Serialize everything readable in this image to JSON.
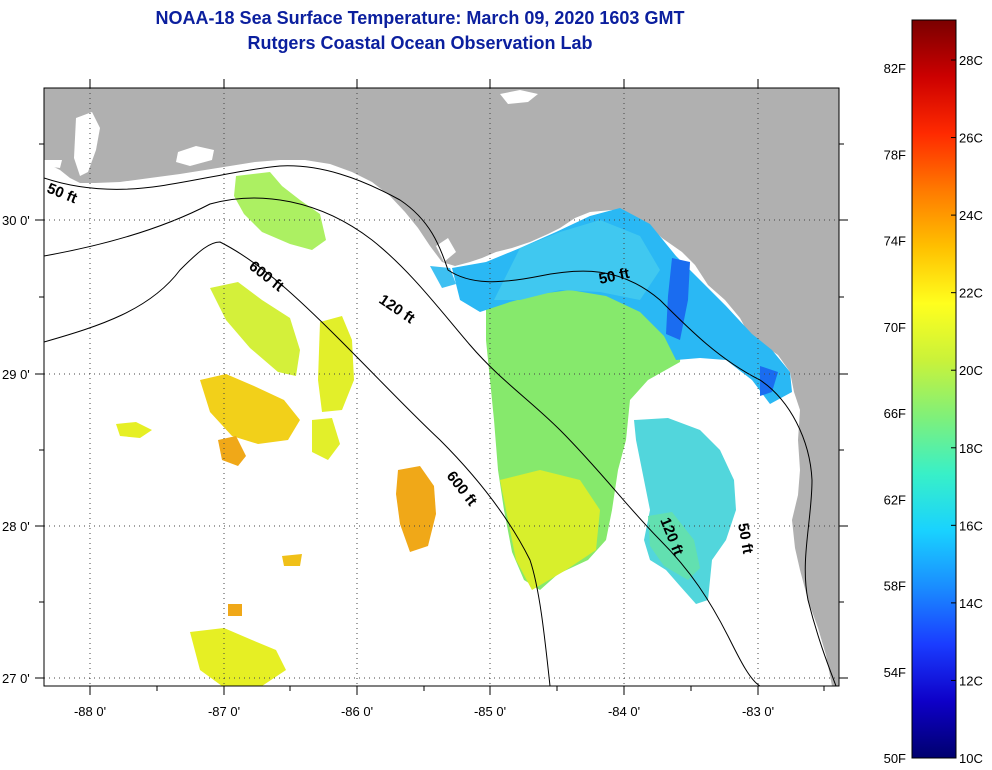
{
  "title": {
    "line1": "NOAA-18 Sea Surface Temperature:  March 09, 2020 1603 GMT",
    "line2": "Rutgers Coastal Ocean Observation Lab"
  },
  "map": {
    "lon_labels": [
      "-88 0'",
      "-87 0'",
      "-86 0'",
      "-85 0'",
      "-84 0'",
      "-83 0'"
    ],
    "lat_labels": [
      "30 0'",
      "29 0'",
      "28 0'",
      "27 0'"
    ],
    "contours": [
      {
        "label": "50 ft"
      },
      {
        "label": "600 ft"
      },
      {
        "label": "120 ft"
      },
      {
        "label": "50 ft"
      },
      {
        "label": "600 ft"
      },
      {
        "label": "120 ft"
      },
      {
        "label": "50 ft"
      }
    ],
    "colors": {
      "land": "#b0b0b0",
      "ocean_nodata": "#ffffff",
      "frame": "#000000"
    }
  },
  "colorbar": {
    "fahrenheit": [
      "82F",
      "78F",
      "74F",
      "70F",
      "66F",
      "62F",
      "58F",
      "54F",
      "50F"
    ],
    "celsius": [
      "28C",
      "26C",
      "24C",
      "22C",
      "20C",
      "18C",
      "16C",
      "14C",
      "12C",
      "10C"
    ],
    "gradient": [
      "#7a0000",
      "#cc0000",
      "#ff2a00",
      "#ff7a00",
      "#ffc000",
      "#ffff1e",
      "#c9f23a",
      "#7ff07a",
      "#38f0c8",
      "#19d2ff",
      "#1a8cff",
      "#1a3cff",
      "#0e00c8",
      "#00006e"
    ]
  }
}
